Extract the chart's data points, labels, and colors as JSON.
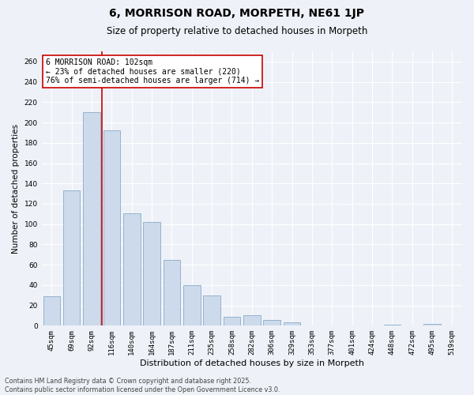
{
  "title1": "6, MORRISON ROAD, MORPETH, NE61 1JP",
  "title2": "Size of property relative to detached houses in Morpeth",
  "xlabel": "Distribution of detached houses by size in Morpeth",
  "ylabel": "Number of detached properties",
  "categories": [
    "45sqm",
    "69sqm",
    "92sqm",
    "116sqm",
    "140sqm",
    "164sqm",
    "187sqm",
    "211sqm",
    "235sqm",
    "258sqm",
    "282sqm",
    "306sqm",
    "329sqm",
    "353sqm",
    "377sqm",
    "401sqm",
    "424sqm",
    "448sqm",
    "472sqm",
    "495sqm",
    "519sqm"
  ],
  "values": [
    29,
    133,
    210,
    192,
    111,
    102,
    65,
    40,
    30,
    9,
    10,
    6,
    3,
    0,
    0,
    0,
    0,
    1,
    0,
    2,
    0
  ],
  "bar_color": "#ccdaeb",
  "bar_edge_color": "#8aaac8",
  "vline_x": 2.5,
  "vline_color": "#cc0000",
  "annotation_text": "6 MORRISON ROAD: 102sqm\n← 23% of detached houses are smaller (220)\n76% of semi-detached houses are larger (714) →",
  "annotation_box_color": "#ffffff",
  "annotation_box_edge": "#cc0000",
  "ylim": [
    0,
    270
  ],
  "yticks": [
    0,
    20,
    40,
    60,
    80,
    100,
    120,
    140,
    160,
    180,
    200,
    220,
    240,
    260
  ],
  "bg_color": "#eef2f8",
  "grid_color": "#ffffff",
  "footer": "Contains HM Land Registry data © Crown copyright and database right 2025.\nContains public sector information licensed under the Open Government Licence v3.0.",
  "title1_fontsize": 10,
  "title2_fontsize": 8.5,
  "xlabel_fontsize": 8,
  "ylabel_fontsize": 7.5,
  "tick_fontsize": 6.5,
  "annotation_fontsize": 7,
  "footer_fontsize": 5.8
}
